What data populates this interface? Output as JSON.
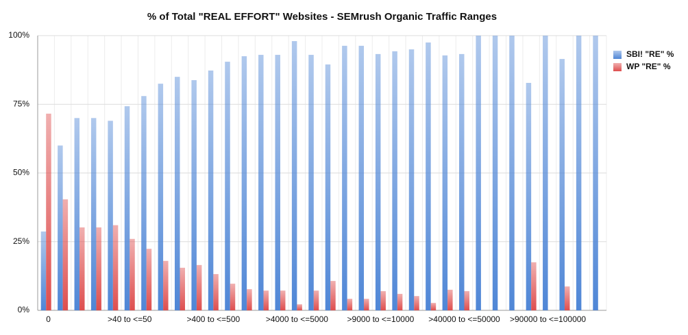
{
  "chart_data": {
    "type": "bar",
    "title": "% of Total \"REAL EFFORT\" Websites - SEMrush Organic Traffic Ranges",
    "categories": [
      "0",
      null,
      null,
      null,
      null,
      ">40 to <=50",
      null,
      null,
      null,
      null,
      ">400 to <=500",
      null,
      null,
      null,
      null,
      ">4000 to <=5000",
      null,
      null,
      null,
      null,
      ">9000 to <=10000",
      null,
      null,
      null,
      null,
      ">40000 to <=50000",
      null,
      null,
      null,
      null,
      ">90000 to <=100000",
      null,
      null,
      null
    ],
    "series": [
      {
        "name": "SBI! \"RE\" %",
        "color": "#4f86d6",
        "values": [
          28.7,
          60,
          70,
          70,
          69,
          74.3,
          78,
          82.5,
          85,
          83.8,
          87.3,
          90.5,
          92.5,
          93,
          93,
          98,
          93,
          89.5,
          96.3,
          96.3,
          93.3,
          94.3,
          95,
          97.5,
          92.8,
          93.3,
          100,
          100,
          100,
          82.8,
          100,
          91.5,
          100,
          100
        ]
      },
      {
        "name": "WP \"RE\" %",
        "color": "#de4e4e",
        "values": [
          71.6,
          40.4,
          30.2,
          30.2,
          31,
          26,
          22.4,
          18,
          15.5,
          16.5,
          13.2,
          9.7,
          7.7,
          7.2,
          7.2,
          2.2,
          7.2,
          10.7,
          4.2,
          4.2,
          7,
          6,
          5.2,
          2.7,
          7.5,
          7,
          0,
          0,
          0,
          17.5,
          0,
          8.7,
          0,
          0
        ]
      }
    ],
    "ylim": [
      0,
      100
    ],
    "yticks": [
      {
        "value": 0,
        "label": "0%"
      },
      {
        "value": 25,
        "label": "25%"
      },
      {
        "value": 50,
        "label": "50%"
      },
      {
        "value": 75,
        "label": "75%"
      },
      {
        "value": 100,
        "label": "100%"
      }
    ],
    "grid": true,
    "legend": "right"
  }
}
